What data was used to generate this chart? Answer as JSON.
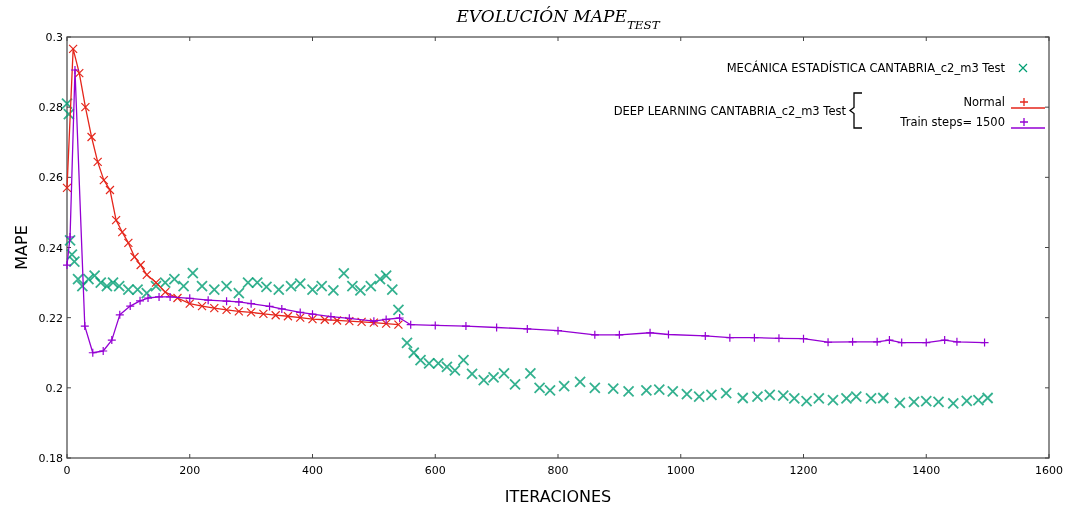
{
  "chart_data": {
    "type": "line",
    "title": "EVOLUCIÓN MAPE$_{TEST}$",
    "xlabel": "ITERACIONES",
    "ylabel": "MAPE",
    "xlim": [
      0,
      1600
    ],
    "xticks": [
      0,
      200,
      400,
      600,
      800,
      1000,
      1200,
      1400,
      1600
    ],
    "ylim": [
      0.18,
      0.3
    ],
    "yticks": [
      0.18,
      0.2,
      0.22,
      0.24,
      0.26,
      0.28,
      0.3
    ],
    "grid": false,
    "legend": "top right",
    "line_style": "solid",
    "annotations": [
      "DEEP LEARNING CANTABRIA_c2_m3 Test"
    ],
    "series": [
      {
        "name": "MECÁNICA ESTADÍSTICA CANTABRIA_c2_m3 Test",
        "color": "#009e73",
        "type": "scatter",
        "marker": "cross",
        "x": [
          0,
          3,
          5,
          8,
          12,
          18,
          25,
          35,
          45,
          55,
          65,
          75,
          85,
          100,
          115,
          130,
          145,
          160,
          175,
          190,
          205,
          220,
          240,
          260,
          280,
          295,
          310,
          325,
          345,
          365,
          380,
          400,
          415,
          434,
          451,
          465,
          478,
          495,
          510,
          520,
          530,
          540,
          554,
          565,
          576,
          590,
          605,
          619,
          632,
          646,
          660,
          679,
          695,
          712,
          730,
          755,
          770,
          787,
          810,
          836,
          860,
          890,
          915,
          944,
          965,
          987,
          1010,
          1030,
          1050,
          1074,
          1101,
          1125,
          1145,
          1167,
          1185,
          1205,
          1225,
          1248,
          1270,
          1286,
          1310,
          1330,
          1357,
          1380,
          1400,
          1420,
          1444,
          1466,
          1485,
          1500
        ],
        "values": [
          0.281,
          0.278,
          0.242,
          0.238,
          0.236,
          0.231,
          0.229,
          0.231,
          0.232,
          0.23,
          0.229,
          0.23,
          0.229,
          0.228,
          0.228,
          0.227,
          0.229,
          0.23,
          0.231,
          0.229,
          0.2327,
          0.229,
          0.228,
          0.229,
          0.227,
          0.23,
          0.23,
          0.2288,
          0.228,
          0.229,
          0.2297,
          0.228,
          0.229,
          0.2278,
          0.2326,
          0.229,
          0.2278,
          0.229,
          0.231,
          0.232,
          0.228,
          0.2222,
          0.2128,
          0.21,
          0.2079,
          0.207,
          0.207,
          0.206,
          0.205,
          0.2079,
          0.204,
          0.2022,
          0.203,
          0.2041,
          0.201,
          0.2041,
          0.2,
          0.1993,
          0.2005,
          0.2017,
          0.2,
          0.1998,
          0.199,
          0.1993,
          0.1995,
          0.199,
          0.1982,
          0.1975,
          0.198,
          0.1985,
          0.1971,
          0.1975,
          0.198,
          0.1978,
          0.197,
          0.1962,
          0.197,
          0.1965,
          0.197,
          0.1975,
          0.197,
          0.1971,
          0.1957,
          0.196,
          0.1962,
          0.196,
          0.1956,
          0.1963,
          0.1965,
          0.1971
        ]
      },
      {
        "name": "Normal",
        "color": "#e5261b",
        "marker": "cross",
        "x": [
          0,
          10,
          20,
          30,
          40,
          50,
          60,
          70,
          80,
          90,
          100,
          110,
          120,
          130,
          145,
          160,
          180,
          200,
          220,
          240,
          260,
          280,
          300,
          320,
          340,
          360,
          380,
          400,
          420,
          440,
          460,
          480,
          500,
          520,
          540
        ],
        "values": [
          0.257,
          0.2966,
          0.2897,
          0.28,
          0.2715,
          0.2644,
          0.2592,
          0.2564,
          0.2478,
          0.2444,
          0.2413,
          0.2373,
          0.235,
          0.2322,
          0.23,
          0.2273,
          0.2256,
          0.224,
          0.2233,
          0.2227,
          0.2222,
          0.2218,
          0.2215,
          0.2211,
          0.2207,
          0.2204,
          0.22,
          0.2196,
          0.2194,
          0.2192,
          0.219,
          0.2188,
          0.2186,
          0.2183,
          0.218
        ]
      },
      {
        "name": "Train steps= 1500",
        "color": "#9400d3",
        "marker": "plus",
        "x": [
          0,
          5,
          13,
          29,
          42,
          59,
          73,
          86,
          103,
          119,
          132,
          150,
          168,
          200,
          230,
          260,
          280,
          300,
          330,
          350,
          380,
          400,
          430,
          460,
          500,
          520,
          542,
          560,
          600,
          650,
          700,
          750,
          800,
          860,
          900,
          950,
          980,
          1040,
          1080,
          1120,
          1160,
          1200,
          1240,
          1280,
          1320,
          1340,
          1360,
          1400,
          1430,
          1450,
          1495
        ],
        "values": [
          0.235,
          0.243,
          0.2906,
          0.2176,
          0.21,
          0.2105,
          0.2136,
          0.2208,
          0.2233,
          0.2248,
          0.2256,
          0.2259,
          0.2259,
          0.2255,
          0.225,
          0.2247,
          0.2245,
          0.224,
          0.2232,
          0.2225,
          0.2215,
          0.221,
          0.2203,
          0.2198,
          0.219,
          0.2195,
          0.2199,
          0.218,
          0.2178,
          0.2176,
          0.2172,
          0.2168,
          0.2163,
          0.2151,
          0.2151,
          0.2157,
          0.2152,
          0.2148,
          0.2143,
          0.2143,
          0.2141,
          0.214,
          0.213,
          0.2131,
          0.2131,
          0.2136,
          0.2129,
          0.2129,
          0.2136,
          0.2131,
          0.2129
        ]
      }
    ]
  }
}
